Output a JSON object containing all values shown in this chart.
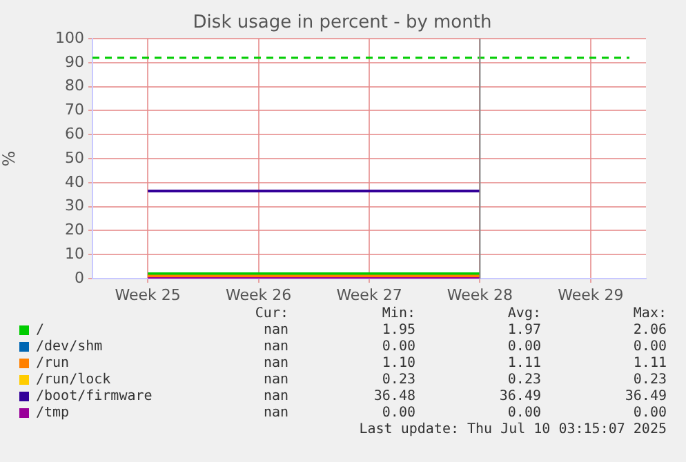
{
  "chart_data": {
    "type": "line",
    "title": "Disk usage in percent - by month",
    "ylabel": "%",
    "categories": [
      "Week 25",
      "Week 26",
      "Week 27",
      "Week 28",
      "Week 29"
    ],
    "ylim": [
      0,
      100
    ],
    "yticks": [
      0,
      10,
      20,
      30,
      40,
      50,
      60,
      70,
      80,
      90,
      100
    ],
    "grid": true,
    "legend": "bottom",
    "marker": "none",
    "series": [
      {
        "name": "/",
        "color": "#00cc00",
        "values": [
          2,
          2,
          2,
          2,
          null
        ]
      },
      {
        "name": "/dev/shm",
        "color": "#0066b3",
        "values": [
          null,
          null,
          null,
          null,
          null
        ]
      },
      {
        "name": "/run",
        "color": "#ff8000",
        "values": [
          1,
          1,
          1,
          1,
          null
        ]
      },
      {
        "name": "/run/lock",
        "color": "#ffcc00",
        "values": [
          null,
          null,
          null,
          null,
          null
        ]
      },
      {
        "name": "/boot/firmware",
        "color": "#330099",
        "values": [
          36.5,
          36.5,
          36.5,
          36.5,
          null
        ]
      },
      {
        "name": "/tmp",
        "color": "#990099",
        "values": [
          0,
          0,
          0,
          0,
          null
        ]
      }
    ],
    "ref_lines": [
      {
        "axis": "y",
        "value": 92,
        "color": "#00cc00",
        "line_style": "dashed"
      },
      {
        "axis": "x",
        "value": "Week 28",
        "color": "#888888",
        "line_style": "solid"
      }
    ],
    "annotations": [
      "Cur: Min: Avg: Max:",
      "nan 1.95 1.97 2.06",
      "nan 0.00 0.00 0.00",
      "nan 1.10 1.11 1.11",
      "nan 0.23 0.23 0.23",
      "nan 36.48 36.49 36.49",
      "nan 0.00 0.00 0.00",
      "Last update: Thu Jul 10 03:15:07 2025"
    ]
  }
}
